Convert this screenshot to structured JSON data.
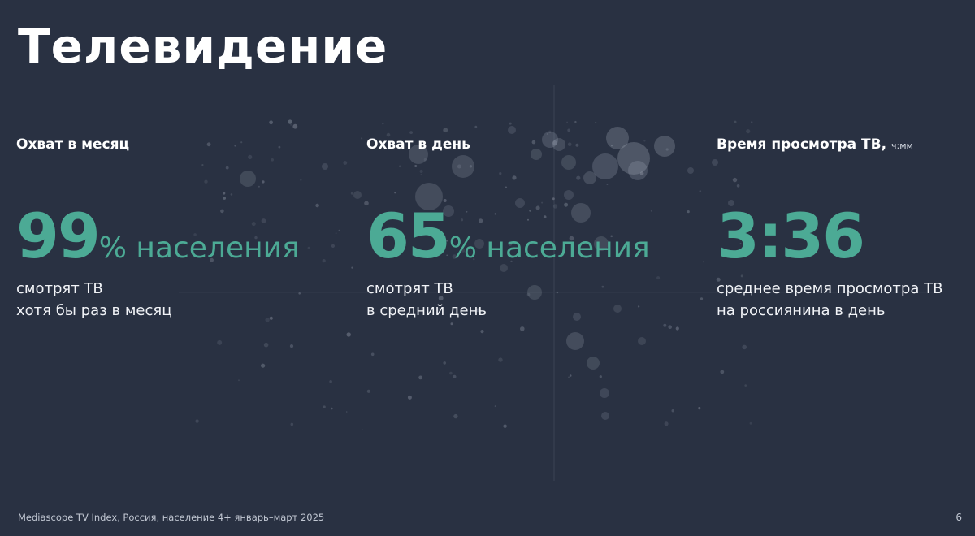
{
  "slide": {
    "title": "Телевидение",
    "footer": "Mediascope TV Index, Россия, население 4+ январь–март 2025",
    "page_number": "6",
    "background_color": "#293142",
    "accent_color": "#4caa95"
  },
  "metrics": [
    {
      "heading": "Охват в месяц",
      "heading_unit": "",
      "value": "99",
      "suffix": "% населения",
      "desc_line1": "смотрят ТВ",
      "desc_line2": "хотя бы раз в месяц"
    },
    {
      "heading": "Охват в день",
      "heading_unit": "",
      "value": "65",
      "suffix": "% населения",
      "desc_line1": "смотрят ТВ",
      "desc_line2": "в средний день"
    },
    {
      "heading": "Время просмотра ТВ,",
      "heading_unit": "ч:мм",
      "value": "3:36",
      "suffix": "",
      "desc_line1": "среднее время просмотра ТВ",
      "desc_line2": "на россиянина в день"
    }
  ]
}
